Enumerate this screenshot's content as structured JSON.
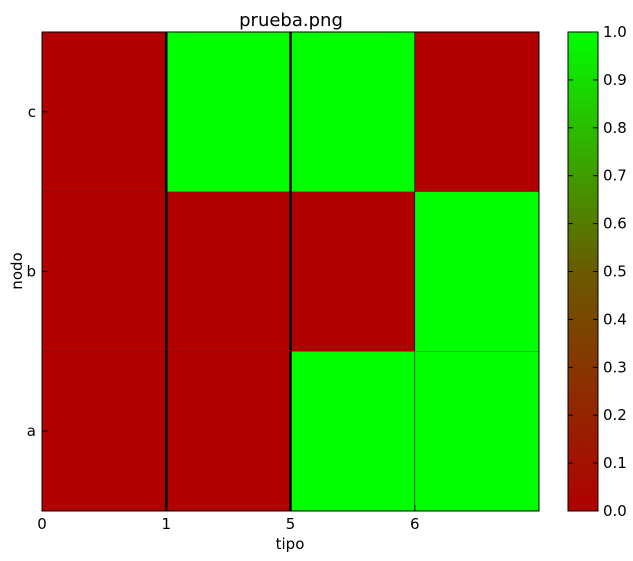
{
  "chart_data": {
    "type": "heatmap",
    "title": "prueba.png",
    "xlabel": "tipo",
    "ylabel": "nodo",
    "x_tick_labels": [
      "0",
      "1",
      "5",
      "6"
    ],
    "y_categories": [
      "a",
      "b",
      "c"
    ],
    "values": [
      [
        0,
        0,
        1,
        1
      ],
      [
        0,
        0,
        0,
        1
      ],
      [
        0,
        1,
        1,
        0
      ]
    ],
    "colorbar": {
      "min": 0.0,
      "max": 1.0,
      "ticks": [
        "0.0",
        "0.1",
        "0.2",
        "0.3",
        "0.4",
        "0.5",
        "0.6",
        "0.7",
        "0.8",
        "0.9",
        "1.0"
      ]
    },
    "colors": {
      "low": "#b00000",
      "mid": "#6a5a00",
      "high": "#00ff00",
      "separator": "#000000"
    },
    "grid": false
  }
}
